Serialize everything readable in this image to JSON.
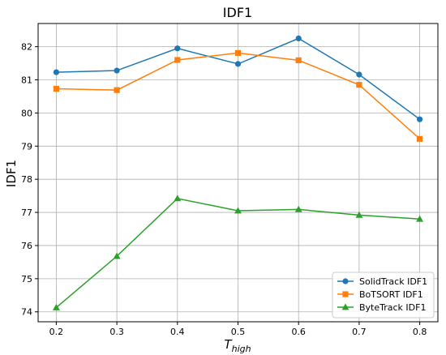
{
  "chart_data": {
    "type": "line",
    "title": "IDF1",
    "xlabel": "T",
    "xlabel_sub": "high",
    "ylabel": "IDF1",
    "x": [
      0.2,
      0.3,
      0.4,
      0.5,
      0.6,
      0.7,
      0.8
    ],
    "x_tick_labels": [
      "0.2",
      "0.3",
      "0.4",
      "0.5",
      "0.6",
      "0.7",
      "0.8"
    ],
    "xlim": [
      0.17,
      0.83
    ],
    "ylim": [
      73.7,
      82.7
    ],
    "y_ticks": [
      74,
      75,
      76,
      77,
      78,
      79,
      80,
      81,
      82
    ],
    "y_tick_labels": [
      "74",
      "75",
      "76",
      "77",
      "78",
      "79",
      "80",
      "81",
      "82"
    ],
    "grid": true,
    "legend_position": "bottom-right",
    "series": [
      {
        "name": "SolidTrack IDF1",
        "color": "#1f77b4",
        "marker": "circle",
        "values": [
          81.23,
          81.28,
          81.95,
          81.48,
          82.25,
          81.16,
          79.81
        ]
      },
      {
        "name": "BoTSORT IDF1",
        "color": "#ff7f0e",
        "marker": "square",
        "values": [
          80.73,
          80.69,
          81.6,
          81.81,
          81.59,
          80.85,
          79.22
        ]
      },
      {
        "name": "ByteTrack IDF1",
        "color": "#2ca02c",
        "marker": "triangle",
        "values": [
          74.13,
          75.68,
          77.42,
          77.05,
          77.09,
          76.92,
          76.8
        ]
      }
    ]
  }
}
